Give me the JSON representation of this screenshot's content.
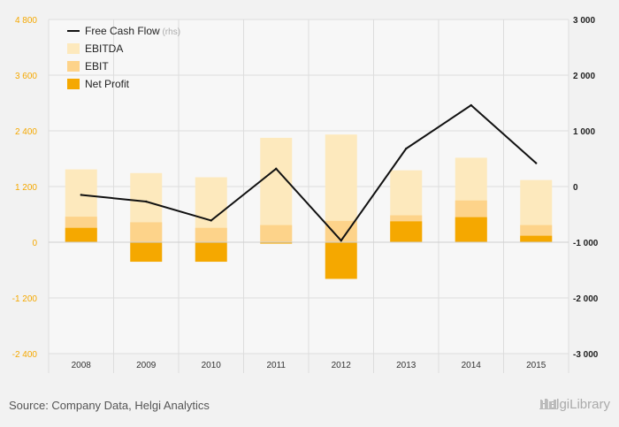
{
  "chart_data": {
    "type": "bar",
    "categories": [
      "2008",
      "2009",
      "2010",
      "2011",
      "2012",
      "2013",
      "2014",
      "2015"
    ],
    "series": [
      {
        "name": "EBITDA",
        "kind": "bar",
        "axis": "left",
        "color": "#fde9bd",
        "values": [
          1570,
          1490,
          1400,
          2250,
          2320,
          1550,
          1820,
          1340
        ]
      },
      {
        "name": "EBIT",
        "kind": "bar",
        "axis": "left",
        "color": "#fdd38a",
        "values": [
          550,
          430,
          310,
          370,
          460,
          580,
          900,
          370
        ]
      },
      {
        "name": "Net Profit",
        "kind": "bar",
        "axis": "left",
        "color": "#f5a800",
        "values": [
          310,
          -420,
          -420,
          -30,
          -790,
          450,
          540,
          140
        ]
      },
      {
        "name": "Free Cash Flow",
        "kind": "line",
        "axis": "right",
        "color": "#111111",
        "values": [
          -150,
          -270,
          -610,
          320,
          -970,
          680,
          1460,
          420
        ]
      }
    ],
    "legend": {
      "entries": [
        "Free Cash Flow",
        "EBITDA",
        "EBIT",
        "Net Profit"
      ],
      "suffix": "(rhs)",
      "position": "top-left"
    },
    "y_left": {
      "range": [
        -2400,
        4800
      ],
      "ticks": [
        4800,
        3600,
        2400,
        1200,
        0,
        -1200,
        -2400
      ],
      "tick_labels": [
        "4 800",
        "3 600",
        "2 400",
        "1 200",
        "0",
        "-1 200",
        "-2 400"
      ],
      "color": "#f5a800"
    },
    "y_right": {
      "range": [
        -3000,
        3000
      ],
      "ticks": [
        3000,
        2000,
        1000,
        0,
        -1000,
        -2000,
        -3000
      ],
      "tick_labels": [
        "3 000",
        "2 000",
        "1 000",
        "0",
        "-1 000",
        "-2 000",
        "-3 000"
      ],
      "color": "#222222"
    },
    "grid": true
  },
  "footer": {
    "source": "Source: Company Data, Helgi Analytics",
    "brand": "HelgiLibrary"
  }
}
